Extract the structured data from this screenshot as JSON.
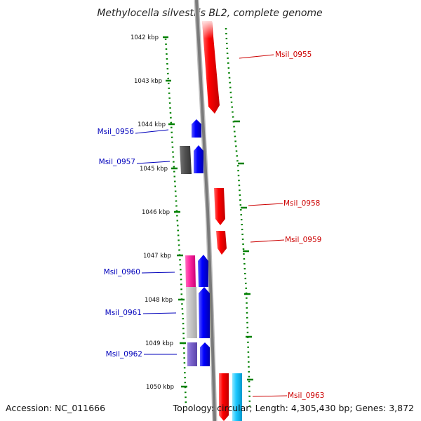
{
  "title": "Methylocella silvestris BL2, complete genome",
  "accession": "Accession: NC_011666",
  "topology": "Topology: circular; Length: 4,305,430 bp; Genes: 3,872",
  "tick_labels": [
    "1042 kbp",
    "1043 kbp",
    "1044 kbp",
    "1045 kbp",
    "1046 kbp",
    "1047 kbp",
    "1048 kbp",
    "1049 kbp",
    "1050 kbp"
  ],
  "genes_forward": [
    "Msil_0955",
    "Msil_0958",
    "Msil_0959",
    "Msil_0963"
  ],
  "genes_reverse": [
    "Msil_0956",
    "Msil_0957",
    "Msil_0960",
    "Msil_0961",
    "Msil_0962"
  ],
  "colors": {
    "forward_label": "#cc0000",
    "reverse_label": "#0000bb",
    "tick": "#008000",
    "backbone": "#808080"
  }
}
